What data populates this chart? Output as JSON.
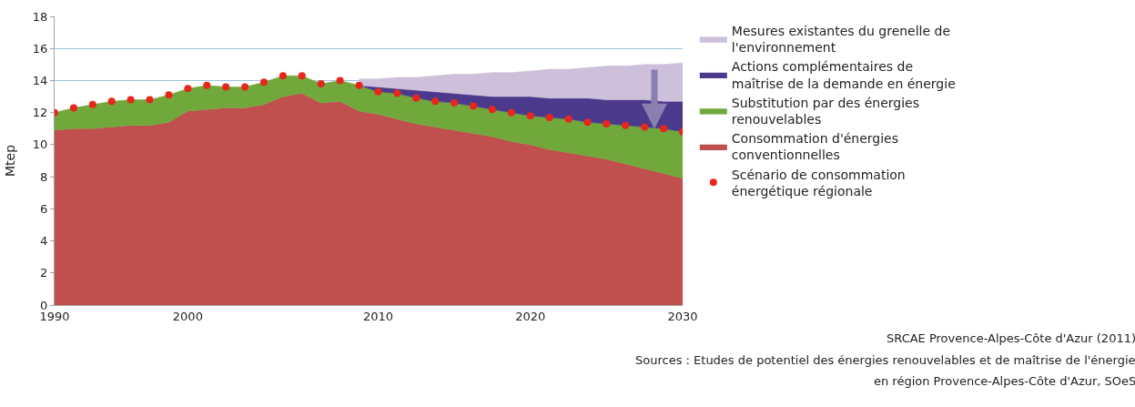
{
  "chart_data": {
    "type": "area",
    "stacked": true,
    "ylabel": "Mtep",
    "categories": [
      "1990",
      null,
      null,
      null,
      null,
      null,
      null,
      "2000",
      null,
      null,
      null,
      null,
      null,
      null,
      null,
      null,
      null,
      "2010",
      null,
      null,
      null,
      null,
      null,
      null,
      null,
      "2020",
      null,
      null,
      null,
      null,
      null,
      null,
      null,
      "2030"
    ],
    "ylim": [
      0,
      18
    ],
    "yticks": [
      0,
      2,
      4,
      6,
      8,
      10,
      12,
      14,
      16,
      18
    ],
    "grid": "y",
    "legend": "right",
    "series": [
      {
        "name": "Scénario de consommation énergétique régionale",
        "type": "scatter",
        "marker": "circle",
        "color": "#e8261c",
        "values": [
          12.0,
          12.3,
          12.5,
          12.7,
          12.8,
          12.8,
          13.1,
          13.5,
          13.7,
          13.6,
          13.6,
          13.9,
          14.3,
          14.3,
          13.8,
          14.0,
          13.7,
          13.3,
          13.2,
          12.9,
          12.7,
          12.6,
          12.4,
          12.2,
          12.0,
          11.8,
          11.7,
          11.6,
          11.4,
          11.3,
          11.2,
          11.1,
          11.0,
          10.8
        ]
      },
      {
        "name": "Consommation d'énergies conventionnelles",
        "color": "#c0504d",
        "values": [
          10.9,
          11.0,
          11.0,
          11.1,
          11.2,
          11.2,
          11.4,
          12.1,
          12.2,
          12.3,
          12.3,
          12.5,
          13.0,
          13.2,
          12.6,
          12.7,
          12.1,
          11.9,
          11.6,
          11.3,
          11.1,
          10.9,
          10.7,
          10.5,
          10.2,
          10.0,
          9.7,
          9.5,
          9.3,
          9.1,
          8.8,
          8.5,
          8.2,
          7.9
        ]
      },
      {
        "name": "Substitution par des énergies renouvelables",
        "color": "#70a83b",
        "values": [
          1.1,
          1.3,
          1.5,
          1.6,
          1.6,
          1.6,
          1.7,
          1.4,
          1.5,
          1.3,
          1.3,
          1.4,
          1.3,
          1.1,
          1.2,
          1.3,
          1.6,
          1.4,
          1.6,
          1.6,
          1.6,
          1.7,
          1.7,
          1.7,
          1.8,
          1.8,
          2.0,
          2.1,
          2.1,
          2.2,
          2.4,
          2.6,
          2.8,
          2.9
        ]
      },
      {
        "name": "Actions complémentaires de maîtrise de la demande en énergie",
        "color": "#4b3a8c",
        "values": [
          null,
          null,
          null,
          null,
          null,
          null,
          null,
          null,
          null,
          null,
          null,
          null,
          null,
          null,
          null,
          null,
          0,
          0.3,
          0.3,
          0.5,
          0.6,
          0.6,
          0.7,
          0.8,
          1.0,
          1.2,
          1.2,
          1.3,
          1.5,
          1.5,
          1.6,
          1.7,
          1.7,
          1.9
        ]
      },
      {
        "name": "Mesures existantes du grenelle de l'environnement",
        "color": "#ccc0da",
        "values": [
          null,
          null,
          null,
          null,
          null,
          null,
          null,
          null,
          null,
          null,
          null,
          null,
          null,
          null,
          null,
          null,
          0.4,
          0.5,
          0.7,
          0.8,
          1.0,
          1.2,
          1.3,
          1.5,
          1.5,
          1.6,
          1.8,
          1.8,
          1.9,
          2.1,
          2.1,
          2.2,
          2.3,
          2.4
        ]
      }
    ],
    "annotations": [
      "SRCAE Provence-Alpes-Côte d'Azur (2011)",
      "Sources : Etudes de potentiel des énergies renouvelables et de maîtrise de l'énergie",
      "en région Provence-Alpes-Côte d'Azur, SOeS"
    ]
  }
}
